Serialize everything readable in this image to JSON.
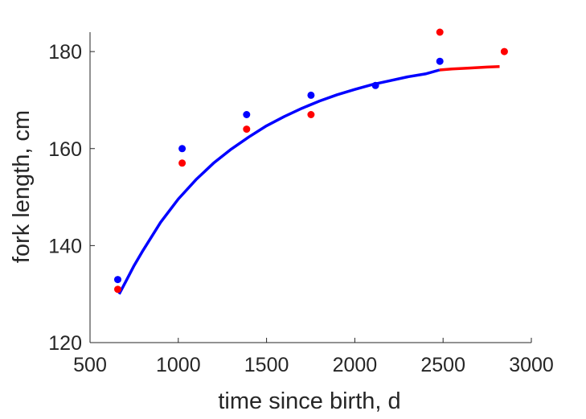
{
  "chart_data": {
    "type": "scatter",
    "xlabel": "time since birth, d",
    "ylabel": "fork length, cm",
    "xlim": [
      500,
      3000
    ],
    "ylim": [
      120,
      184
    ],
    "xticks": [
      500,
      1000,
      1500,
      2000,
      2500,
      3000
    ],
    "yticks": [
      120,
      140,
      160,
      180
    ],
    "grid": false,
    "series": [
      {
        "kind": "points",
        "color": "#0000ff",
        "x": [
          657,
          1022,
          1387,
          1752,
          2117,
          2482
        ],
        "y": [
          133,
          160,
          167,
          171,
          173,
          178
        ]
      },
      {
        "kind": "points",
        "color": "#ff0000",
        "x": [
          657,
          1022,
          1387,
          1752,
          2482,
          2847
        ],
        "y": [
          131,
          157,
          164,
          167,
          184,
          180
        ]
      },
      {
        "kind": "line",
        "color": "#ff0000",
        "x": [
          2480,
          2550,
          2650,
          2750,
          2820
        ],
        "y": [
          176.2,
          176.4,
          176.6,
          176.8,
          176.9
        ]
      },
      {
        "kind": "line",
        "color": "#0000ff",
        "x": [
          665,
          700,
          750,
          800,
          900,
          1000,
          1100,
          1200,
          1300,
          1400,
          1500,
          1600,
          1700,
          1800,
          1900,
          2000,
          2100,
          2200,
          2300,
          2400,
          2480
        ],
        "y": [
          130.0,
          132.4,
          135.9,
          139.0,
          144.8,
          149.6,
          153.6,
          157.0,
          159.9,
          162.4,
          164.7,
          166.6,
          168.3,
          169.8,
          171.1,
          172.2,
          173.2,
          174.0,
          174.8,
          175.4,
          176.2
        ]
      }
    ]
  }
}
